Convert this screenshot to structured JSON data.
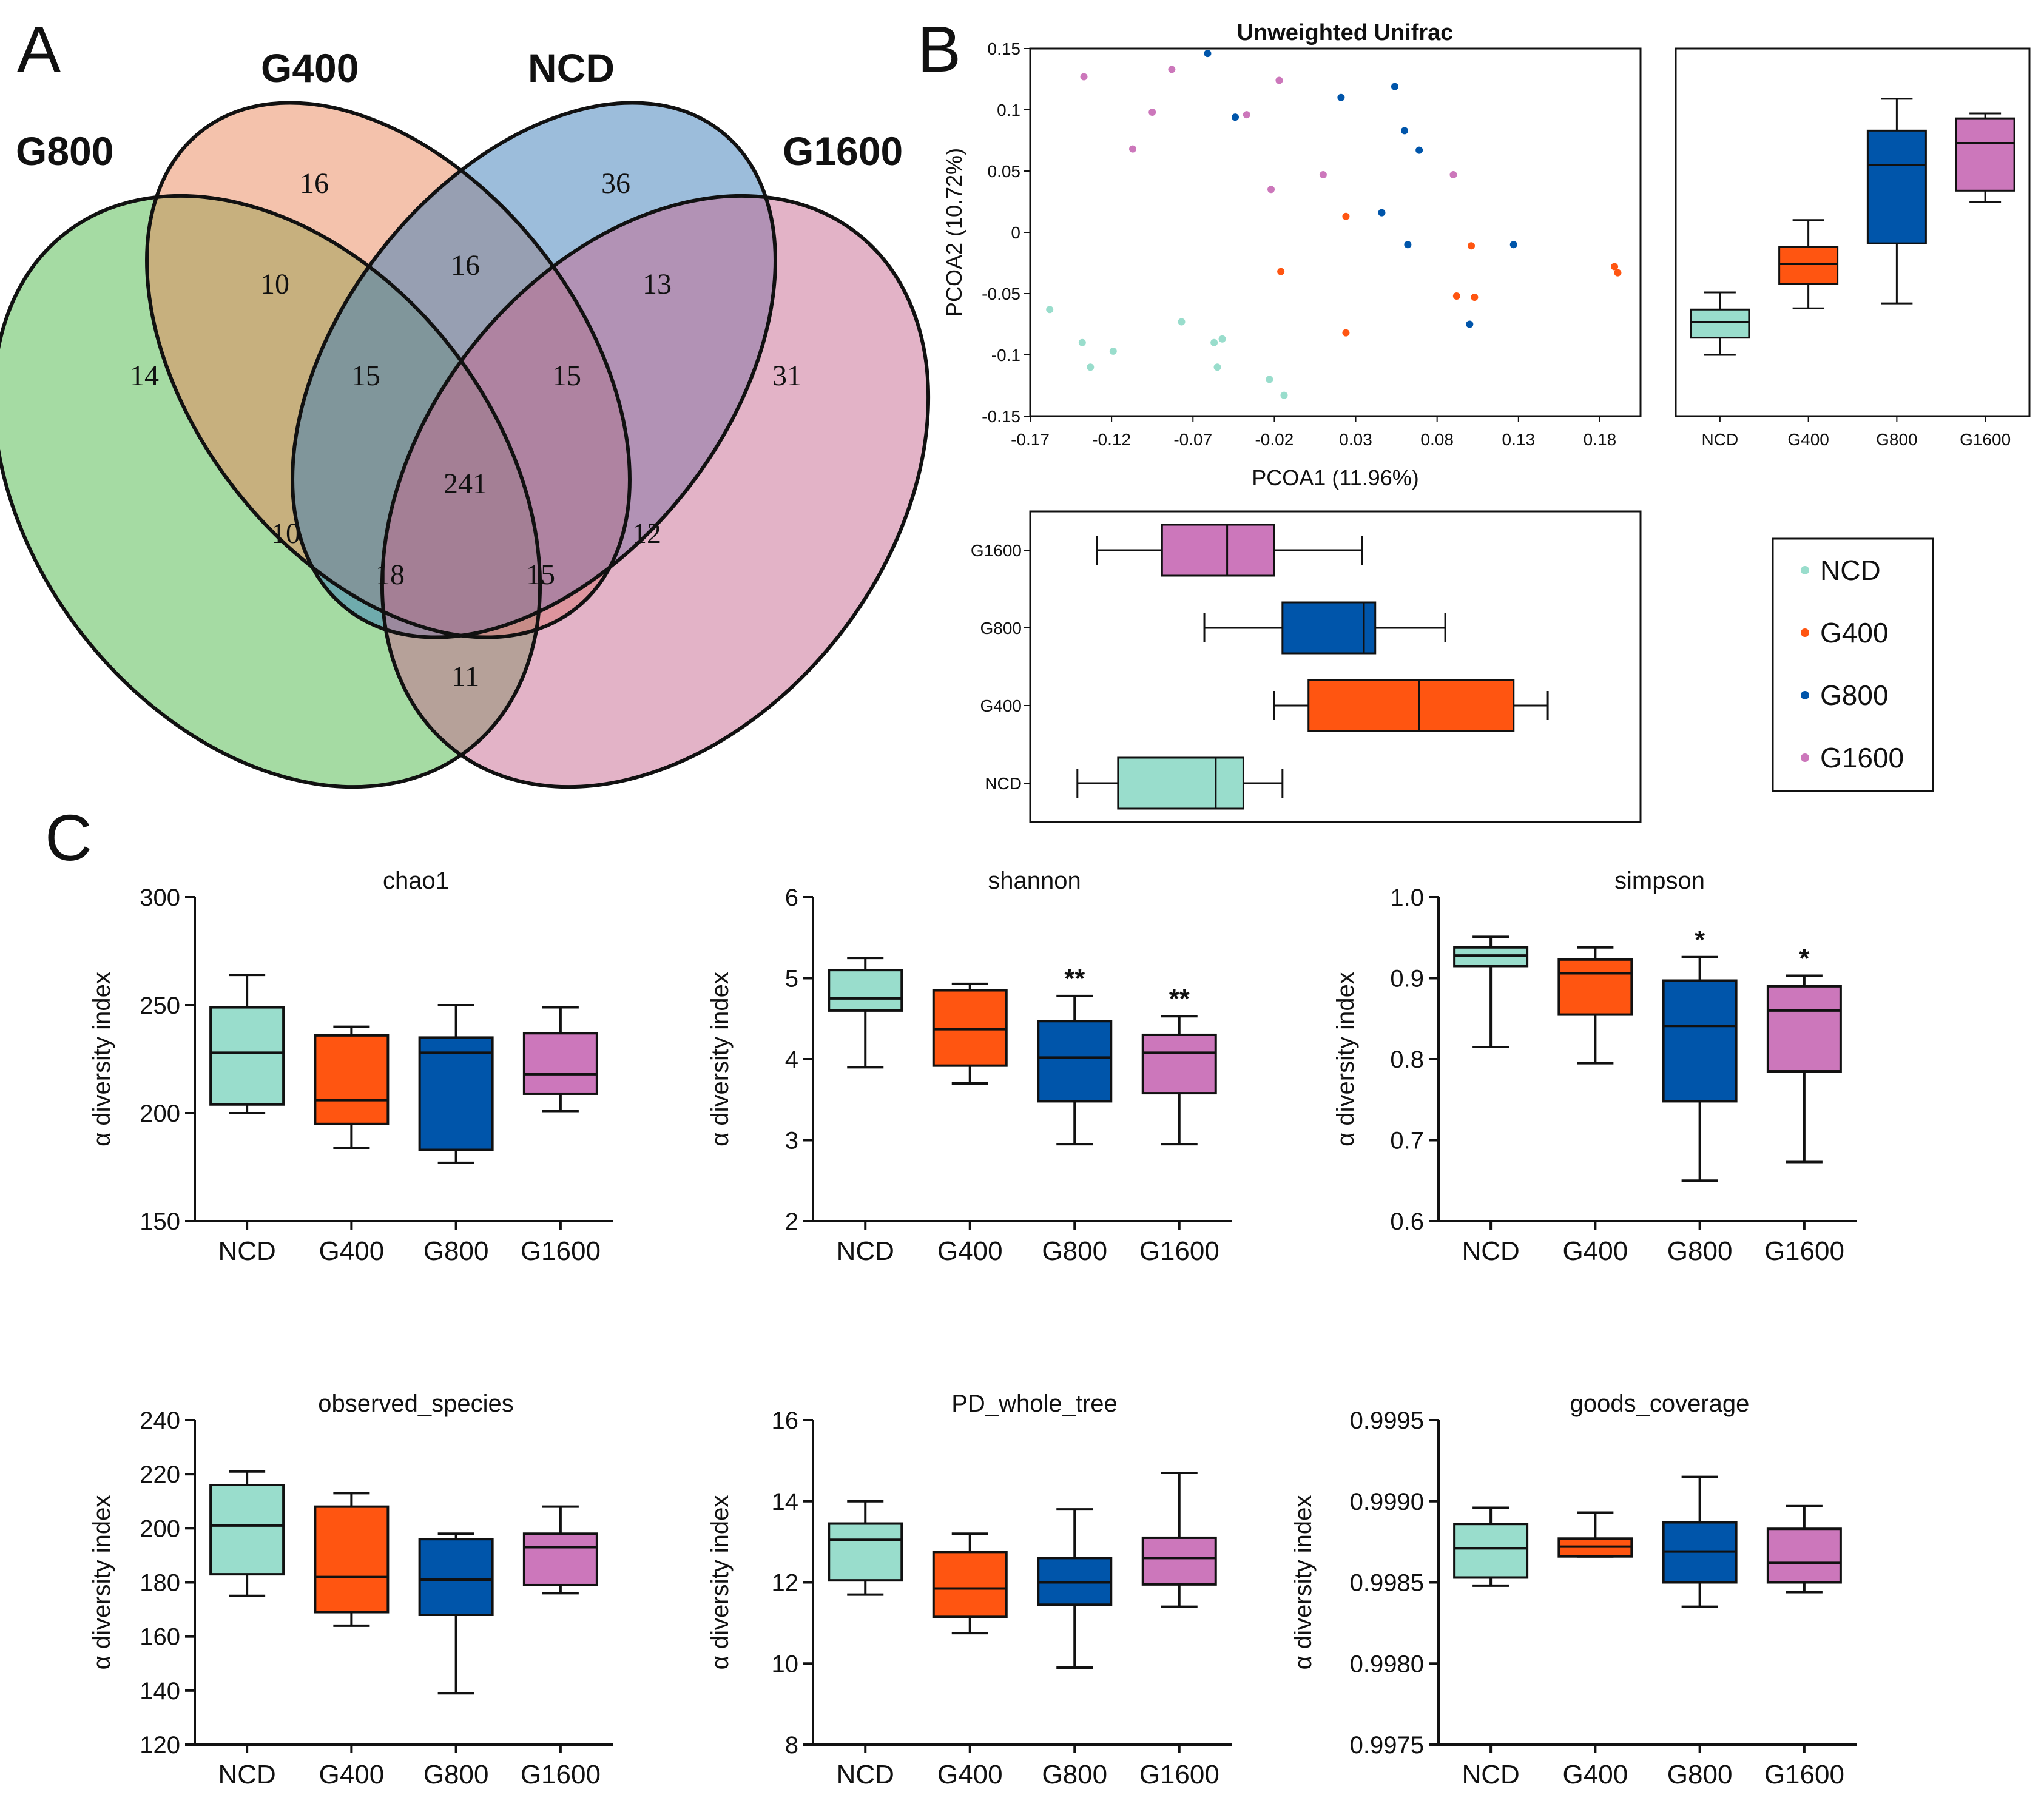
{
  "panel_labels": {
    "a": "A",
    "b": "B",
    "c": "C"
  },
  "colors": {
    "NCD": "#99DDCC",
    "G400": "#FF5511",
    "G800": "#0055AA",
    "G1600": "#CC77BB"
  },
  "chart_data": [
    {
      "type": "venn",
      "panel": "A",
      "sets": [
        "G800",
        "G400",
        "NCD",
        "G1600"
      ],
      "set_colors": {
        "G800": "#4CB848",
        "G400": "#E9855A",
        "NCD": "#3A7CB8",
        "G1600": "#C7688F"
      },
      "regions": {
        "G800_only": 14,
        "G400_only": 16,
        "NCD_only": 36,
        "G1600_only": 31,
        "G800_G400": 10,
        "G400_NCD": 16,
        "NCD_G1600": 13,
        "G800_NCD": 10,
        "G400_G1600": 12,
        "G800_G1600": 11,
        "G800_G400_NCD": 15,
        "G400_NCD_G1600": 15,
        "G800_NCD_G1600": 18,
        "G800_G400_G1600": 15,
        "all": 241
      }
    },
    {
      "type": "scatter",
      "panel": "B",
      "title": "Unweighted Unifrac",
      "xlabel": "PCOA1 (11.96%)",
      "ylabel": "PCOA2 (10.72%)",
      "xlim": [
        -0.17,
        0.205
      ],
      "ylim": [
        -0.15,
        0.15
      ],
      "xticks": [
        "-0.17",
        "-0.12",
        "-0.07",
        "-0.02",
        "0.03",
        "0.08",
        "0.13",
        "0.18"
      ],
      "yticks": [
        "0.15",
        "0.1",
        "0.05",
        "0",
        "-0.05",
        "-0.1",
        "-0.15"
      ],
      "series": [
        {
          "name": "NCD",
          "points": [
            [
              -0.158,
              -0.063
            ],
            [
              -0.138,
              -0.09
            ],
            [
              -0.133,
              -0.11
            ],
            [
              -0.119,
              -0.097
            ],
            [
              -0.077,
              -0.073
            ],
            [
              -0.057,
              -0.09
            ],
            [
              -0.052,
              -0.087
            ],
            [
              -0.055,
              -0.11
            ],
            [
              -0.023,
              -0.12
            ],
            [
              -0.014,
              -0.133
            ]
          ]
        },
        {
          "name": "G400",
          "points": [
            [
              -0.016,
              -0.032
            ],
            [
              0.024,
              0.013
            ],
            [
              0.024,
              -0.082
            ],
            [
              0.092,
              -0.052
            ],
            [
              0.101,
              -0.011
            ],
            [
              0.103,
              -0.053
            ],
            [
              0.189,
              -0.028
            ],
            [
              0.191,
              -0.033
            ]
          ]
        },
        {
          "name": "G800",
          "points": [
            [
              -0.061,
              0.146
            ],
            [
              -0.044,
              0.094
            ],
            [
              0.021,
              0.11
            ],
            [
              0.046,
              0.016
            ],
            [
              0.054,
              0.119
            ],
            [
              0.06,
              0.083
            ],
            [
              0.062,
              -0.01
            ],
            [
              0.069,
              0.067
            ],
            [
              0.1,
              -0.075
            ],
            [
              0.127,
              -0.01
            ]
          ]
        },
        {
          "name": "G1600",
          "points": [
            [
              -0.137,
              0.127
            ],
            [
              -0.107,
              0.068
            ],
            [
              -0.095,
              0.098
            ],
            [
              -0.083,
              0.133
            ],
            [
              -0.037,
              0.096
            ],
            [
              -0.022,
              0.035
            ],
            [
              -0.017,
              0.124
            ],
            [
              0.01,
              0.047
            ],
            [
              0.09,
              0.047
            ]
          ]
        }
      ]
    },
    {
      "type": "box",
      "panel": "B-right",
      "axis": "PCOA2",
      "categories": [
        "NCD",
        "G400",
        "G800",
        "G1600"
      ],
      "boxes": [
        {
          "min": -0.1,
          "q1": -0.086,
          "median": -0.073,
          "q3": -0.063,
          "max": -0.049
        },
        {
          "min": -0.062,
          "q1": -0.042,
          "median": -0.026,
          "q3": -0.012,
          "max": 0.01
        },
        {
          "min": -0.058,
          "q1": -0.009,
          "median": 0.055,
          "q3": 0.083,
          "max": 0.109
        },
        {
          "min": 0.025,
          "q1": 0.034,
          "median": 0.073,
          "q3": 0.093,
          "max": 0.097
        }
      ]
    },
    {
      "type": "box",
      "panel": "B-bottom",
      "axis": "PCOA1",
      "orientation": "horizontal",
      "categories": [
        "NCD",
        "G400",
        "G800",
        "G1600"
      ],
      "boxes": [
        {
          "min": -0.141,
          "q1": -0.116,
          "median": -0.056,
          "q3": -0.039,
          "max": -0.015
        },
        {
          "min": -0.02,
          "q1": 0.001,
          "median": 0.069,
          "q3": 0.127,
          "max": 0.148
        },
        {
          "min": -0.063,
          "q1": -0.015,
          "median": 0.035,
          "q3": 0.042,
          "max": 0.085
        },
        {
          "min": -0.129,
          "q1": -0.089,
          "median": -0.049,
          "q3": -0.02,
          "max": 0.034
        }
      ]
    },
    {
      "type": "legend",
      "panel": "B-legend",
      "items": [
        "NCD",
        "G400",
        "G800",
        "G1600"
      ]
    },
    {
      "type": "box",
      "panel": "C",
      "title": "chao1",
      "ylabel": "α diversity index",
      "categories": [
        "NCD",
        "G400",
        "G800",
        "G1600"
      ],
      "ylim": [
        150,
        300
      ],
      "yticks": [
        "300",
        "250",
        "200",
        "150"
      ],
      "boxes": [
        {
          "min": 200,
          "q1": 204,
          "median": 228,
          "q3": 249,
          "max": 264,
          "sig": ""
        },
        {
          "min": 184,
          "q1": 195,
          "median": 206,
          "q3": 236,
          "max": 240,
          "sig": ""
        },
        {
          "min": 177,
          "q1": 183,
          "median": 228,
          "q3": 235,
          "max": 250,
          "sig": ""
        },
        {
          "min": 201,
          "q1": 209,
          "median": 218,
          "q3": 237,
          "max": 249,
          "sig": ""
        }
      ]
    },
    {
      "type": "box",
      "panel": "C",
      "title": "shannon",
      "ylabel": "α diversity index",
      "categories": [
        "NCD",
        "G400",
        "G800",
        "G1600"
      ],
      "ylim": [
        2,
        6
      ],
      "yticks": [
        "6",
        "5",
        "4",
        "3",
        "2"
      ],
      "boxes": [
        {
          "min": 3.9,
          "q1": 4.6,
          "median": 4.75,
          "q3": 5.1,
          "max": 5.25,
          "sig": ""
        },
        {
          "min": 3.7,
          "q1": 3.92,
          "median": 4.37,
          "q3": 4.85,
          "max": 4.93,
          "sig": ""
        },
        {
          "min": 2.95,
          "q1": 3.48,
          "median": 4.02,
          "q3": 4.47,
          "max": 4.78,
          "sig": "**"
        },
        {
          "min": 2.95,
          "q1": 3.58,
          "median": 4.08,
          "q3": 4.3,
          "max": 4.53,
          "sig": "**"
        }
      ]
    },
    {
      "type": "box",
      "panel": "C",
      "title": "simpson",
      "ylabel": "α diversity index",
      "categories": [
        "NCD",
        "G400",
        "G800",
        "G1600"
      ],
      "ylim": [
        0.6,
        1.0
      ],
      "yticks": [
        "1.0",
        "0.9",
        "0.8",
        "0.7",
        "0.6"
      ],
      "boxes": [
        {
          "min": 0.815,
          "q1": 0.915,
          "median": 0.928,
          "q3": 0.938,
          "max": 0.951,
          "sig": ""
        },
        {
          "min": 0.795,
          "q1": 0.855,
          "median": 0.906,
          "q3": 0.923,
          "max": 0.938,
          "sig": ""
        },
        {
          "min": 0.65,
          "q1": 0.748,
          "median": 0.841,
          "q3": 0.897,
          "max": 0.926,
          "sig": "*"
        },
        {
          "min": 0.673,
          "q1": 0.785,
          "median": 0.86,
          "q3": 0.89,
          "max": 0.903,
          "sig": "*"
        }
      ]
    },
    {
      "type": "box",
      "panel": "C",
      "title": "observed_species",
      "ylabel": "α diversity index",
      "categories": [
        "NCD",
        "G400",
        "G800",
        "G1600"
      ],
      "ylim": [
        120,
        240
      ],
      "yticks": [
        "240",
        "220",
        "200",
        "180",
        "160",
        "140",
        "120"
      ],
      "boxes": [
        {
          "min": 175,
          "q1": 183,
          "median": 201,
          "q3": 216,
          "max": 221,
          "sig": ""
        },
        {
          "min": 164,
          "q1": 169,
          "median": 182,
          "q3": 208,
          "max": 213,
          "sig": ""
        },
        {
          "min": 139,
          "q1": 168,
          "median": 181,
          "q3": 196,
          "max": 198,
          "sig": ""
        },
        {
          "min": 176,
          "q1": 179,
          "median": 193,
          "q3": 198,
          "max": 208,
          "sig": ""
        }
      ]
    },
    {
      "type": "box",
      "panel": "C",
      "title": "PD_whole_tree",
      "ylabel": "α diversity index",
      "categories": [
        "NCD",
        "G400",
        "G800",
        "G1600"
      ],
      "ylim": [
        8,
        16
      ],
      "yticks": [
        "16",
        "14",
        "12",
        "10",
        "8"
      ],
      "boxes": [
        {
          "min": 11.7,
          "q1": 12.05,
          "median": 13.05,
          "q3": 13.45,
          "max": 14.0,
          "sig": ""
        },
        {
          "min": 10.75,
          "q1": 11.15,
          "median": 11.85,
          "q3": 12.75,
          "max": 13.2,
          "sig": ""
        },
        {
          "min": 9.9,
          "q1": 11.45,
          "median": 12.0,
          "q3": 12.6,
          "max": 13.8,
          "sig": ""
        },
        {
          "min": 11.4,
          "q1": 11.95,
          "median": 12.6,
          "q3": 13.1,
          "max": 14.7,
          "sig": ""
        }
      ]
    },
    {
      "type": "box",
      "panel": "C",
      "title": "goods_coverage",
      "ylabel": "α diversity index",
      "categories": [
        "NCD",
        "G400",
        "G800",
        "G1600"
      ],
      "ylim": [
        0.9975,
        0.9995
      ],
      "yticks": [
        "0.9995",
        "0.9990",
        "0.9985",
        "0.9980",
        "0.9975"
      ],
      "boxes": [
        {
          "min": 0.99848,
          "q1": 0.99853,
          "median": 0.99871,
          "q3": 0.99886,
          "max": 0.99896,
          "sig": ""
        },
        {
          "min": 0.99866,
          "q1": 0.99866,
          "median": 0.99872,
          "q3": 0.99877,
          "max": 0.99893,
          "sig": ""
        },
        {
          "min": 0.99835,
          "q1": 0.9985,
          "median": 0.99869,
          "q3": 0.99887,
          "max": 0.99915,
          "sig": ""
        },
        {
          "min": 0.99844,
          "q1": 0.9985,
          "median": 0.99862,
          "q3": 0.99883,
          "max": 0.99897,
          "sig": ""
        }
      ]
    }
  ]
}
